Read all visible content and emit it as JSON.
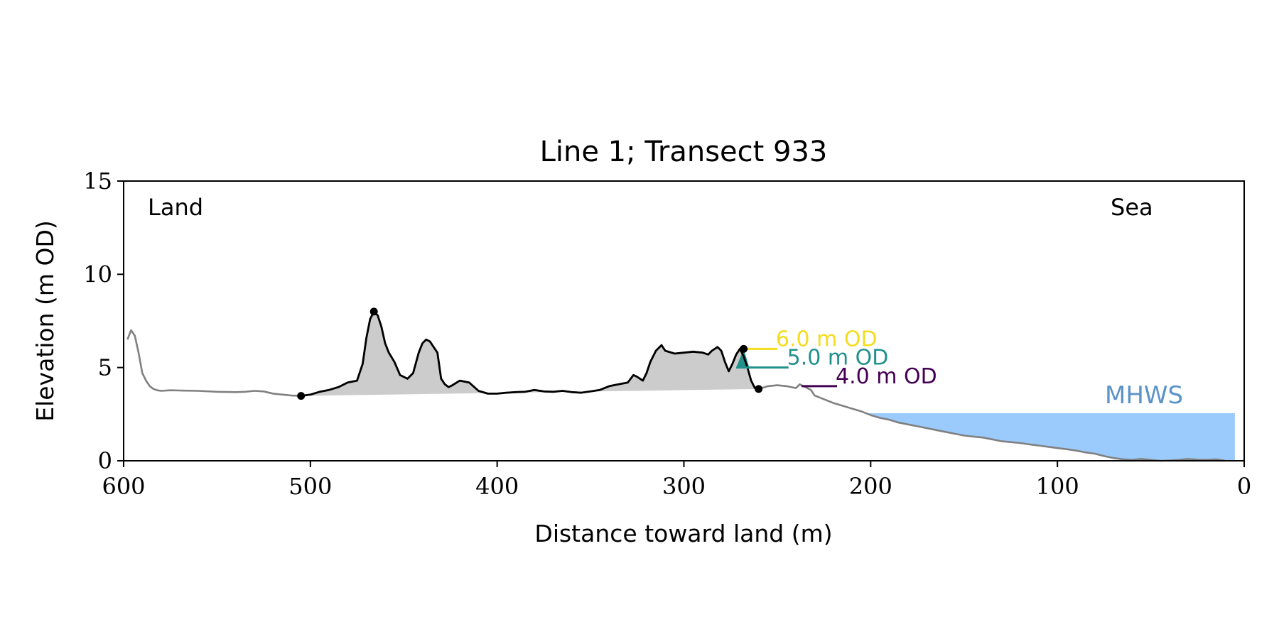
{
  "chart_data": {
    "type": "line",
    "title": "Line 1; Transect 933",
    "xlabel": "Distance toward land (m)",
    "ylabel": "Elevation (m OD)",
    "xlim": [
      600,
      0
    ],
    "ylim": [
      0,
      15
    ],
    "x_ticks": [
      600,
      500,
      400,
      300,
      200,
      100,
      0
    ],
    "y_ticks": [
      0,
      5,
      10,
      15
    ],
    "grid": false,
    "annotations": {
      "land": "Land",
      "sea": "Sea",
      "mhws": "MHWS"
    },
    "colors": {
      "profile": "#808080",
      "dune": "#000000",
      "dune_fill": "#cccccc",
      "mhws_fill": "#9bcbfc",
      "mhws_text": "#5b93c6",
      "level_6": "#f5dc1e",
      "level_5": "#21918c",
      "level_4": "#440154"
    },
    "series": [
      {
        "role": "profile",
        "x": [
          598,
          596,
          594,
          592,
          590,
          588,
          586,
          584,
          582,
          580,
          575,
          570,
          560,
          550,
          540,
          535,
          530,
          525,
          520,
          510,
          505,
          500,
          495,
          490,
          485,
          480,
          475,
          472,
          470,
          468,
          466,
          464,
          462,
          460,
          458,
          455,
          452,
          448,
          445,
          442,
          440,
          438,
          436,
          432,
          430,
          428,
          426,
          424,
          420,
          415,
          410,
          405,
          400,
          395,
          390,
          385,
          380,
          375,
          370,
          365,
          360,
          355,
          350,
          345,
          340,
          335,
          330,
          327,
          325,
          322,
          320,
          318,
          315,
          312,
          310,
          305,
          300,
          295,
          290,
          287,
          285,
          282,
          280,
          278,
          276,
          274,
          272,
          270,
          268,
          266,
          264,
          262,
          260,
          255,
          250,
          245,
          240,
          238,
          235,
          232,
          230,
          225,
          220,
          215,
          210,
          205,
          200,
          195,
          190,
          185,
          180,
          175,
          170,
          165,
          160,
          155,
          150,
          145,
          140,
          135,
          130,
          125,
          120,
          115,
          110,
          105,
          100,
          95,
          90,
          85,
          80,
          75,
          70,
          65,
          60,
          55,
          50,
          45,
          40,
          35,
          30,
          25,
          20,
          15,
          10
        ],
        "y": [
          6.5,
          7.0,
          6.7,
          5.8,
          4.7,
          4.3,
          4.0,
          3.85,
          3.78,
          3.75,
          3.78,
          3.77,
          3.75,
          3.7,
          3.68,
          3.7,
          3.75,
          3.72,
          3.6,
          3.5,
          3.48,
          3.55,
          3.7,
          3.8,
          3.95,
          4.2,
          4.3,
          5.2,
          6.6,
          7.6,
          8.0,
          7.8,
          7.2,
          6.3,
          5.8,
          5.3,
          4.6,
          4.4,
          4.7,
          5.8,
          6.3,
          6.5,
          6.4,
          5.8,
          4.4,
          4.1,
          3.95,
          4.05,
          4.3,
          4.2,
          3.75,
          3.6,
          3.6,
          3.65,
          3.68,
          3.7,
          3.8,
          3.72,
          3.7,
          3.75,
          3.68,
          3.65,
          3.72,
          3.8,
          4.0,
          4.1,
          4.2,
          4.6,
          4.5,
          4.3,
          4.7,
          5.3,
          5.9,
          6.2,
          5.9,
          5.75,
          5.8,
          5.85,
          5.8,
          5.7,
          5.9,
          6.1,
          5.9,
          5.3,
          4.8,
          5.2,
          5.7,
          6.0,
          5.6,
          5.0,
          4.3,
          3.9,
          3.85,
          4.0,
          4.05,
          4.0,
          3.9,
          4.1,
          3.95,
          3.8,
          3.5,
          3.3,
          3.1,
          2.95,
          2.8,
          2.65,
          2.45,
          2.3,
          2.2,
          2.05,
          1.95,
          1.85,
          1.75,
          1.65,
          1.55,
          1.45,
          1.35,
          1.3,
          1.25,
          1.15,
          1.05,
          1.0,
          0.95,
          0.88,
          0.82,
          0.75,
          0.68,
          0.62,
          0.55,
          0.45,
          0.38,
          0.25,
          0.15,
          0.08,
          0.05,
          0.1,
          0.05,
          0.0,
          0.02,
          0.05,
          0.1,
          0.06,
          0.05,
          0.08,
          0.0
        ]
      },
      {
        "role": "dune_line",
        "x": [
          505,
          500,
          495,
          490,
          485,
          480,
          475,
          472,
          470,
          468,
          466,
          464,
          462,
          460,
          458,
          455,
          452,
          448,
          445,
          442,
          440,
          438,
          436,
          432,
          430,
          428,
          426,
          424,
          420,
          415,
          410,
          405,
          400,
          395,
          390,
          385,
          380,
          375,
          370,
          365,
          360,
          355,
          350,
          345,
          340,
          335,
          330,
          327,
          325,
          322,
          320,
          318,
          315,
          312,
          310,
          305,
          300,
          295,
          290,
          287,
          285,
          282,
          280,
          278,
          276,
          274,
          272,
          270,
          268,
          266,
          264,
          262,
          260
        ],
        "y": [
          3.48,
          3.55,
          3.7,
          3.8,
          3.95,
          4.2,
          4.3,
          5.2,
          6.6,
          7.6,
          8.0,
          7.8,
          7.2,
          6.3,
          5.8,
          5.3,
          4.6,
          4.4,
          4.7,
          5.8,
          6.3,
          6.5,
          6.4,
          5.8,
          4.4,
          4.1,
          3.95,
          4.05,
          4.3,
          4.2,
          3.75,
          3.6,
          3.6,
          3.65,
          3.68,
          3.7,
          3.8,
          3.72,
          3.7,
          3.75,
          3.68,
          3.65,
          3.72,
          3.8,
          4.0,
          4.1,
          4.2,
          4.6,
          4.5,
          4.3,
          4.7,
          5.3,
          5.9,
          6.2,
          5.9,
          5.75,
          5.8,
          5.85,
          5.8,
          5.7,
          5.9,
          6.1,
          5.9,
          5.3,
          4.8,
          5.2,
          5.7,
          6.0,
          5.6,
          5.0,
          4.3,
          3.9,
          3.85
        ]
      }
    ],
    "markers": [
      {
        "x": 505,
        "y": 3.48
      },
      {
        "x": 466,
        "y": 8.0
      },
      {
        "x": 268,
        "y": 6.0
      },
      {
        "x": 260,
        "y": 3.85
      }
    ],
    "dune_base": {
      "from": [
        505,
        3.48
      ],
      "to": [
        260,
        3.85
      ]
    },
    "front_slope_fill": {
      "x": [
        272,
        268,
        265,
        272
      ],
      "y": [
        5.0,
        6.0,
        5.0,
        5.0
      ]
    },
    "levels": [
      {
        "label": "6.0 m OD",
        "y": 6.0,
        "x_start": 268,
        "x_end": 250,
        "color_key": "level_6"
      },
      {
        "label": "5.0 m OD",
        "y": 5.0,
        "x_start": 272,
        "x_end": 244,
        "color_key": "level_5"
      },
      {
        "label": "4.0 m OD",
        "y": 4.0,
        "x_start": 237,
        "x_end": 218,
        "color_key": "level_4"
      }
    ],
    "mhws": {
      "y": 2.55,
      "x_from": 202,
      "x_to": 5
    }
  }
}
